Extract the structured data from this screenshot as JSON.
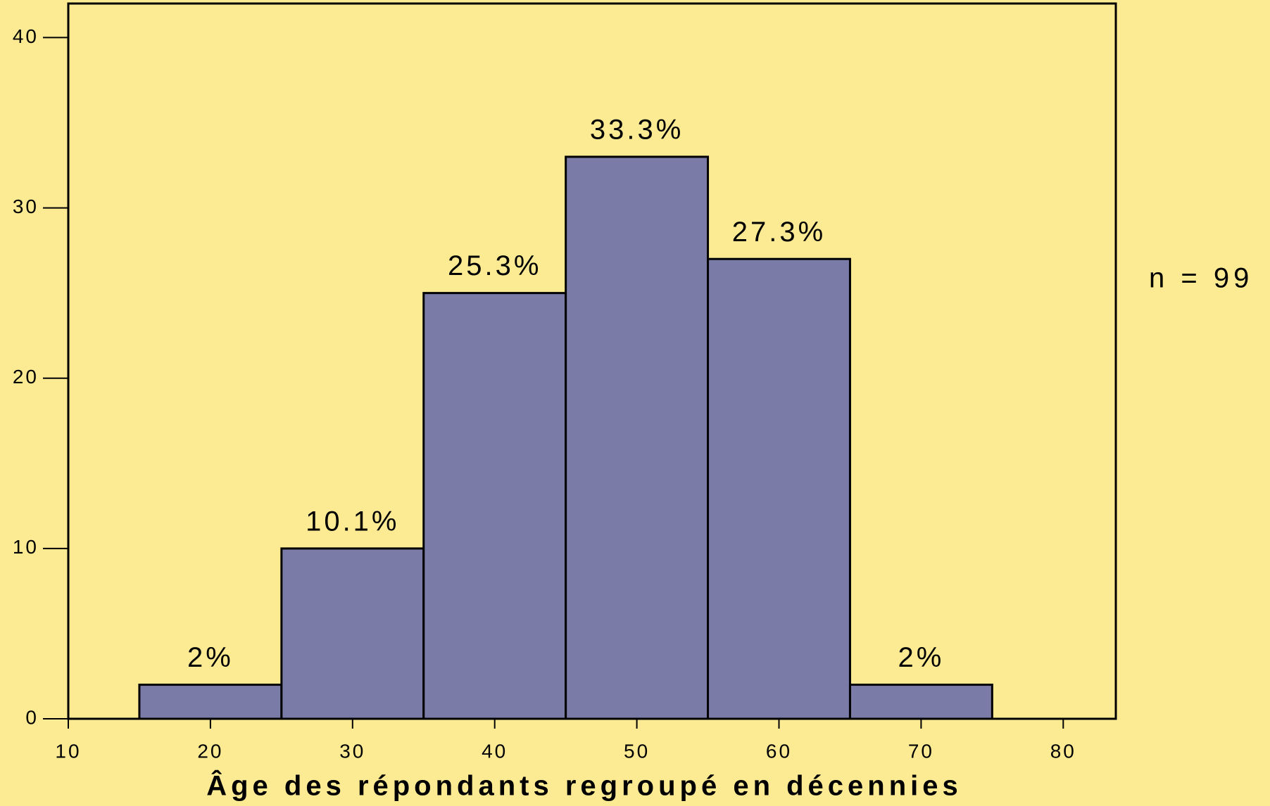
{
  "chart_data": {
    "type": "histogram",
    "x_label": "Âge des répondants regroupé en décennies",
    "annotation": "n = 99",
    "bins": [
      15,
      25,
      35,
      45,
      55,
      65,
      75
    ],
    "values": [
      2,
      10,
      25,
      33,
      27,
      2
    ],
    "bar_labels": [
      "2%",
      "10.1%",
      "25.3%",
      "33.3%",
      "27.3%",
      "2%"
    ],
    "color": "#7b7ba8",
    "xlim": [
      10,
      83.7
    ],
    "xticks": [
      10,
      20,
      30,
      40,
      50,
      60,
      70,
      80
    ],
    "ylim": [
      0,
      42
    ],
    "yticks": [
      0,
      10,
      20,
      30,
      40
    ]
  }
}
